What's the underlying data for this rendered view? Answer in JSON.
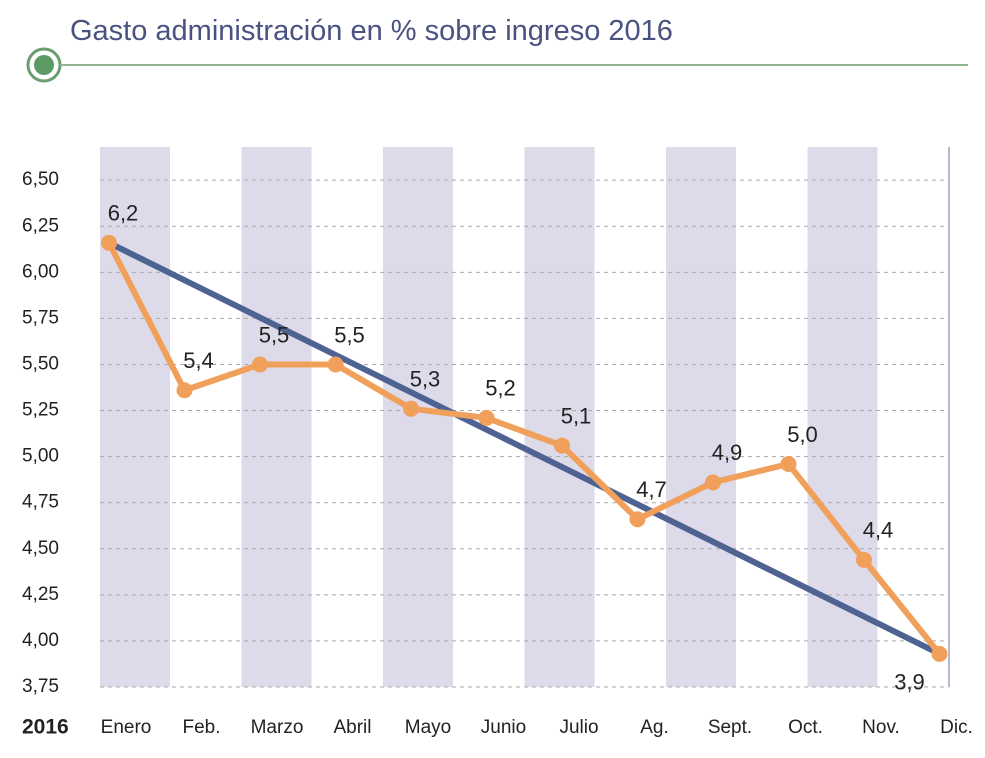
{
  "chart_data": {
    "type": "line",
    "title": "Gasto administración en % sobre ingreso 2016",
    "year_label": "2016",
    "categories": [
      "Enero",
      "Feb.",
      "Marzo",
      "Abril",
      "Mayo",
      "Junio",
      "Julio",
      "Ag.",
      "Sept.",
      "Oct.",
      "Nov.",
      "Dic."
    ],
    "series": [
      {
        "color": "#f0a05a",
        "values": [
          6.16,
          5.36,
          5.5,
          5.5,
          5.26,
          5.21,
          5.06,
          4.66,
          4.86,
          4.96,
          4.44,
          3.93
        ],
        "value_labels": [
          "6,2",
          "5,4",
          "5,5",
          "5,5",
          "5,3",
          "5,2",
          "5,1",
          "4,7",
          "4,9",
          "5,0",
          "4,4",
          "3,9"
        ]
      }
    ],
    "trendline": {
      "color": "#4f6393",
      "start": 6.16,
      "end": 3.93
    },
    "band_color": "#dddbea",
    "ylim": [
      3.75,
      6.68
    ],
    "yticks": [
      {
        "value": 3.75,
        "label": "3,75"
      },
      {
        "value": 4,
        "label": "4,00"
      },
      {
        "value": 4.25,
        "label": "4,25"
      },
      {
        "value": 4.5,
        "label": "4,50"
      },
      {
        "value": 4.75,
        "label": "4,75"
      },
      {
        "value": 5,
        "label": "5,00"
      },
      {
        "value": 5.25,
        "label": "5,25"
      },
      {
        "value": 5.5,
        "label": "5,50"
      },
      {
        "value": 5.75,
        "label": "5,75"
      },
      {
        "value": 6,
        "label": "6,00"
      },
      {
        "value": 6.25,
        "label": "6,25"
      },
      {
        "value": 6.5,
        "label": "6,50"
      }
    ],
    "grid": true
  }
}
